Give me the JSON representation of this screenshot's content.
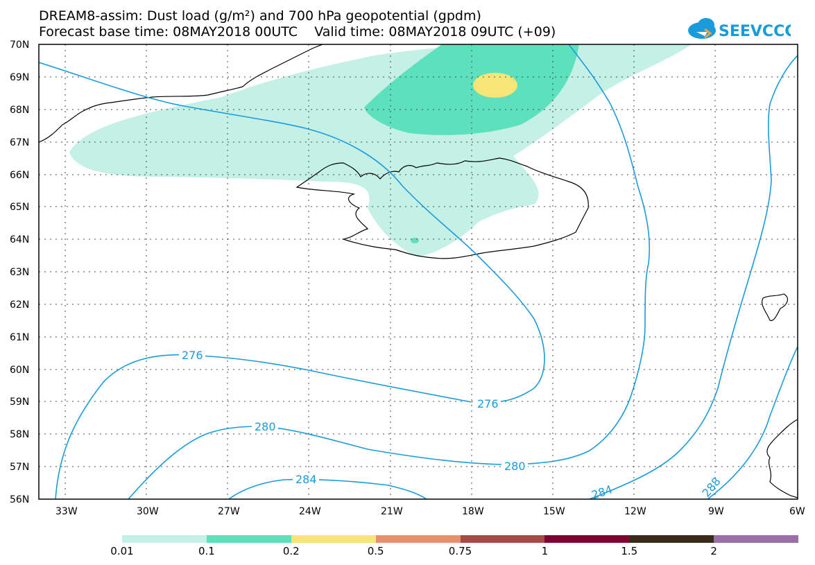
{
  "header": {
    "line1": "DREAM8-assim: Dust load (g/m²) and 700 hPa geopotential (gpdm)",
    "line2": "Forecast base time: 08MAY2018 00UTC    Valid time: 08MAY2018 09UTC (+09)"
  },
  "logo": {
    "text": "SEEVCCC",
    "icon": "cloud-icon",
    "color": "#1a9bdc"
  },
  "map": {
    "lat_labels": [
      "70N",
      "69N",
      "68N",
      "67N",
      "66N",
      "65N",
      "64N",
      "63N",
      "62N",
      "61N",
      "60N",
      "59N",
      "58N",
      "57N",
      "56N"
    ],
    "lon_labels": [
      "33W",
      "30W",
      "27W",
      "24W",
      "21W",
      "18W",
      "15W",
      "12W",
      "9W",
      "6W"
    ],
    "contour_labels": [
      "276",
      "276",
      "280",
      "280",
      "284",
      "284",
      "288"
    ],
    "contour_color": "#1a9bdc"
  },
  "colorbar": {
    "colors": [
      "#c4f0e6",
      "#5de0bc",
      "#f7e677",
      "#e8906c",
      "#a54a46",
      "#800030",
      "#3a2a18",
      "#9a6fa6"
    ],
    "labels": [
      "0.01",
      "0.1",
      "0.2",
      "0.5",
      "0.75",
      "1",
      "1.5",
      "2"
    ]
  }
}
